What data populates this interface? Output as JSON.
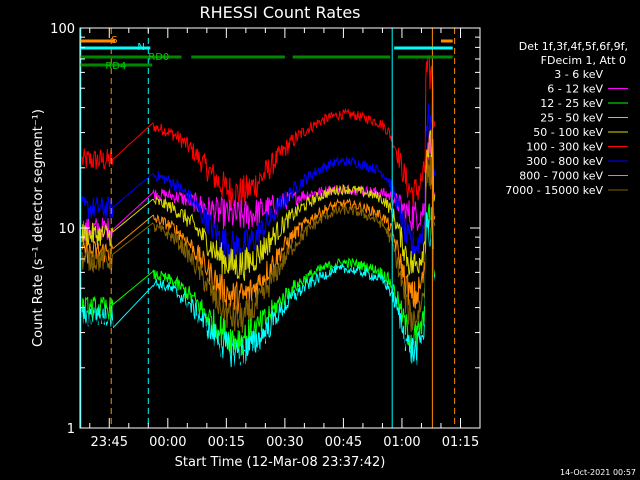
{
  "chart_data": {
    "type": "line",
    "title": "RHESSI Count Rates",
    "xlabel": "Start Time (12-Mar-08 23:37:42)",
    "ylabel": "Count Rate (s⁻¹ detector segment⁻¹)",
    "x_ticks": [
      "23:45",
      "00:00",
      "00:15",
      "00:30",
      "00:45",
      "01:00",
      "01:15"
    ],
    "y_ticks": [
      "1",
      "10",
      "100"
    ],
    "y_scale": "log",
    "ylim": [
      1,
      100
    ],
    "xlim_minutes": [
      -22.5,
      80
    ],
    "grid": false,
    "legend_position": "right",
    "legend_header": [
      "Det 1f,3f,4f,5f,6f,9f,",
      "FDecim 1, Att 0"
    ],
    "series": [
      {
        "name": "3 - 6 keV",
        "color": "#000000",
        "base": 5.0,
        "min": 2.0
      },
      {
        "name": "6 - 12 keV",
        "color": "#ff00ff",
        "base": 15.0,
        "min": 11.5
      },
      {
        "name": "12 - 25 keV",
        "color": "#00ff00",
        "base": 6.0,
        "min": 2.8
      },
      {
        "name": "25 - 50 keV",
        "color": "#00ffff",
        "base": 5.5,
        "min": 2.4
      },
      {
        "name": "50 - 100 keV",
        "color": "#d8d800",
        "base": 14.0,
        "min": 6.5
      },
      {
        "name": "100 - 300 keV",
        "color": "#ff0000",
        "base": 33.0,
        "min": 15.0
      },
      {
        "name": "300 - 800 keV",
        "color": "#0000ff",
        "base": 19.0,
        "min": 8.0
      },
      {
        "name": "800 - 7000 keV",
        "color": "#ff8c00",
        "base": 11.5,
        "min": 4.5
      },
      {
        "name": "7000 - 15000 keV",
        "color": "#806000",
        "base": 10.5,
        "min": 3.5
      }
    ],
    "orbit_bars": [
      {
        "label": "S",
        "color": "#ff8c00",
        "segments": [
          [
            -22.5,
            -13.5
          ],
          [
            70,
            73
          ]
        ]
      },
      {
        "label": "N",
        "color": "#00ffff",
        "segments": [
          [
            -22.5,
            -4.5
          ],
          [
            58,
            73
          ]
        ]
      },
      {
        "label": "RD0",
        "color": "#008800",
        "segments": [
          [
            -22.5,
            3.5
          ],
          [
            6,
            30
          ],
          [
            32,
            57
          ],
          [
            59,
            73
          ]
        ]
      },
      {
        "label": "RD4",
        "color": "#008800",
        "segments": [
          [
            -22.5,
            -4
          ]
        ]
      }
    ],
    "vlines": [
      {
        "minute": -22.3,
        "color": "#00ffff",
        "style": "solid"
      },
      {
        "minute": -14.5,
        "color": "#ff8c00",
        "style": "dashed"
      },
      {
        "minute": -5.0,
        "color": "#00ffff",
        "style": "dashed"
      },
      {
        "minute": 57.5,
        "color": "#00ffff",
        "style": "solid"
      },
      {
        "minute": 67.8,
        "color": "#ff8c00",
        "style": "solid"
      },
      {
        "minute": 73.5,
        "color": "#ff8c00",
        "style": "dashed"
      }
    ]
  },
  "timestamp": "14-Oct-2021 00:57"
}
